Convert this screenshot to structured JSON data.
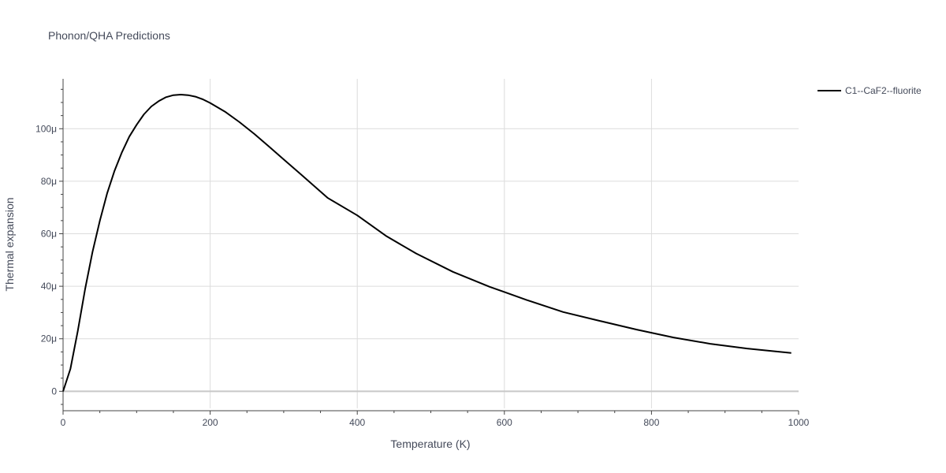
{
  "chart_data": {
    "type": "line",
    "title": "Phonon/QHA Predictions",
    "xlabel": "Temperature (K)",
    "ylabel": "Thermal expansion",
    "xlim": [
      0,
      1000
    ],
    "ylim": [
      -6.5,
      119
    ],
    "x_ticks": [
      0,
      200,
      400,
      600,
      800,
      1000
    ],
    "x_tick_labels": [
      "0",
      "200",
      "400",
      "600",
      "800",
      "1000"
    ],
    "y_ticks": [
      0,
      20,
      40,
      60,
      80,
      100
    ],
    "y_tick_labels": [
      "0",
      "20μ",
      "40μ",
      "60μ",
      "80μ",
      "100μ"
    ],
    "grid": true,
    "legend_position": "top-right",
    "series": [
      {
        "name": "C1--CaF2--fluorite",
        "color": "#000000",
        "x": [
          0,
          10,
          20,
          30,
          40,
          50,
          60,
          70,
          80,
          90,
          100,
          110,
          120,
          130,
          140,
          150,
          160,
          170,
          180,
          190,
          200,
          220,
          240,
          260,
          280,
          300,
          330,
          360,
          400,
          440,
          480,
          530,
          580,
          630,
          680,
          730,
          780,
          830,
          880,
          930,
          990
        ],
        "y": [
          0,
          8.5,
          23,
          39,
          53,
          65,
          75.5,
          84,
          91,
          97,
          101.5,
          105.5,
          108.5,
          110.5,
          112,
          112.8,
          113,
          112.8,
          112.2,
          111.2,
          109.8,
          106.5,
          102.5,
          98,
          93.2,
          88.3,
          81,
          73.6,
          67,
          59,
          52.5,
          45.5,
          39.8,
          34.8,
          30.2,
          26.8,
          23.5,
          20.5,
          18.1,
          16.3,
          14.6
        ]
      }
    ]
  }
}
